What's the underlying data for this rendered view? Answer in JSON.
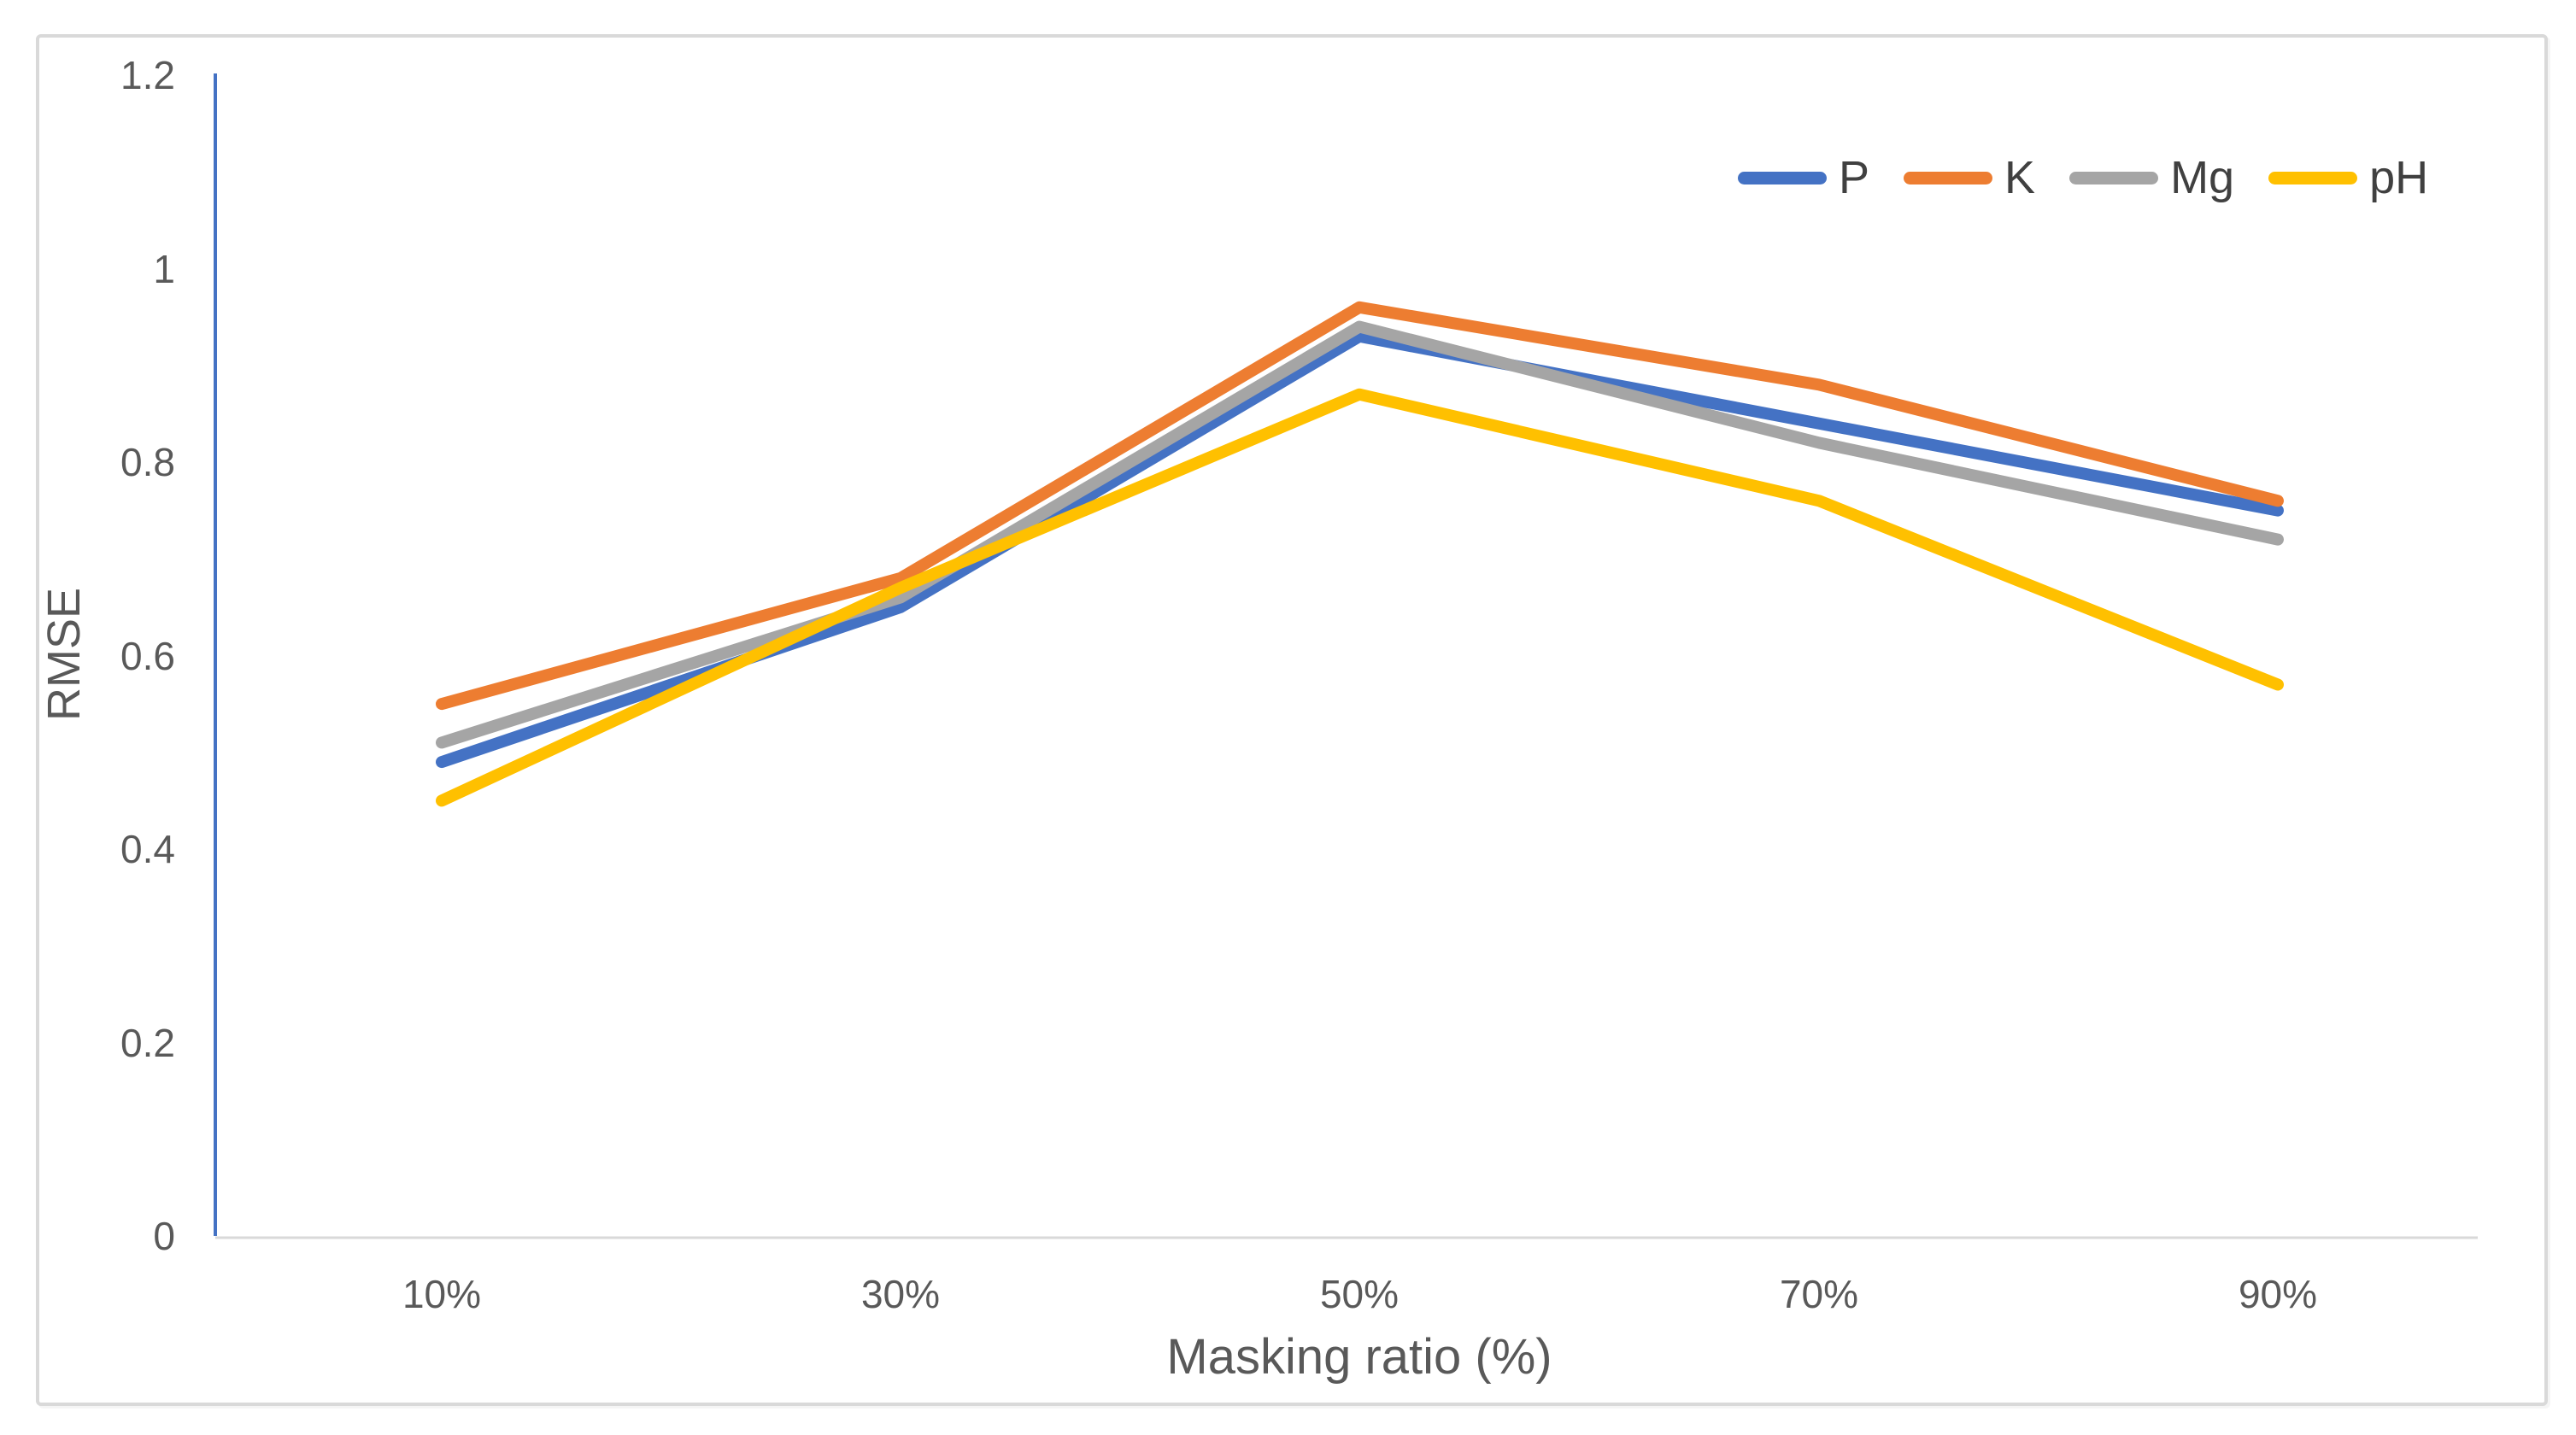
{
  "figure": {
    "background": "#ffffff",
    "border_color": "#d9d9d9"
  },
  "chart_data": {
    "type": "line",
    "title": "",
    "categories": [
      "10%",
      "30%",
      "50%",
      "70%",
      "90%"
    ],
    "series": [
      {
        "name": "P",
        "color": "#4472C4",
        "values": [
          0.49,
          0.65,
          0.93,
          0.84,
          0.75
        ]
      },
      {
        "name": "K",
        "color": "#ED7D31",
        "values": [
          0.55,
          0.68,
          0.96,
          0.88,
          0.76
        ]
      },
      {
        "name": "Mg",
        "color": "#A5A5A5",
        "values": [
          0.51,
          0.66,
          0.94,
          0.82,
          0.72
        ]
      },
      {
        "name": "pH",
        "color": "#FFC000",
        "values": [
          0.45,
          0.67,
          0.87,
          0.76,
          0.57
        ]
      }
    ],
    "xlabel": "Masking ratio (%)",
    "ylabel": "RMSE",
    "ylim": [
      0,
      1.2
    ],
    "y_ticks": [
      "1.2",
      "1",
      "0.8",
      "0.6",
      "0.4",
      "0.2",
      "0"
    ],
    "grid": false,
    "legend_position": "top-right",
    "axis_colors": {
      "y_axis_line": "#4472C4",
      "x_axis_line": "#D9D9D9"
    },
    "text_color": "#595959"
  }
}
